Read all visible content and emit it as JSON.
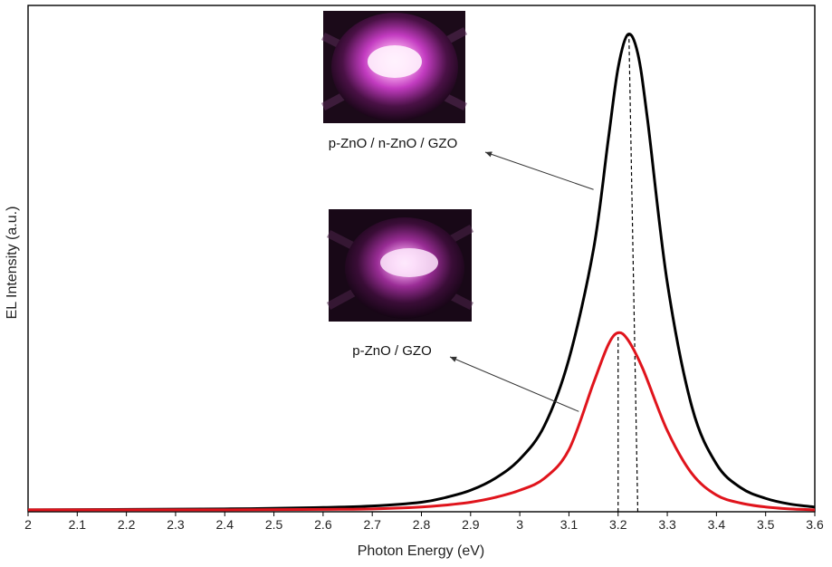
{
  "chart_data": {
    "type": "line",
    "xlabel": "Photon Energy (eV)",
    "ylabel": "EL Intensity (a.u.)",
    "xlim": [
      2,
      3.6
    ],
    "ylim": [
      0,
      1.0
    ],
    "x_ticks": [
      "2",
      "2.1",
      "2.2",
      "2.3",
      "2.4",
      "2.5",
      "2.6",
      "2.7",
      "2.8",
      "2.9",
      "3",
      "3.1",
      "3.2",
      "3.3",
      "3.4",
      "3.5",
      "3.6"
    ],
    "grid": false,
    "legend": "none",
    "series": [
      {
        "color": "#000000",
        "x": [
          2.0,
          2.4,
          2.6,
          2.7,
          2.8,
          2.85,
          2.9,
          2.95,
          3.0,
          3.05,
          3.1,
          3.15,
          3.18,
          3.2,
          3.22,
          3.24,
          3.26,
          3.3,
          3.35,
          3.4,
          3.45,
          3.5,
          3.55,
          3.6
        ],
        "y": [
          0.004,
          0.006,
          0.009,
          0.012,
          0.02,
          0.03,
          0.045,
          0.07,
          0.11,
          0.18,
          0.32,
          0.55,
          0.78,
          0.93,
          1.0,
          0.96,
          0.82,
          0.48,
          0.22,
          0.1,
          0.05,
          0.028,
          0.016,
          0.01
        ]
      },
      {
        "color": "#e0141c",
        "x": [
          2.0,
          2.4,
          2.6,
          2.7,
          2.8,
          2.85,
          2.9,
          2.95,
          3.0,
          3.05,
          3.1,
          3.15,
          3.18,
          3.2,
          3.22,
          3.25,
          3.3,
          3.35,
          3.4,
          3.45,
          3.5,
          3.55,
          3.6
        ],
        "y": [
          0.004,
          0.004,
          0.005,
          0.006,
          0.01,
          0.014,
          0.02,
          0.03,
          0.045,
          0.07,
          0.13,
          0.27,
          0.35,
          0.375,
          0.36,
          0.3,
          0.17,
          0.08,
          0.035,
          0.018,
          0.01,
          0.006,
          0.004
        ]
      }
    ],
    "reference_lines": [
      {
        "x_bottom": 3.24,
        "x_top": 3.222,
        "y_top": 1.0,
        "style": "dashed"
      },
      {
        "x_bottom": 3.2,
        "x_top": 3.2,
        "y_top": 0.375,
        "style": "dashed"
      }
    ],
    "annotations": [
      {
        "text": "p-ZnO / n-ZnO / GZO",
        "target_x": 3.15,
        "target_y": 0.675
      },
      {
        "text": "p-ZnO / GZO",
        "target_x": 3.12,
        "target_y": 0.21
      }
    ]
  }
}
